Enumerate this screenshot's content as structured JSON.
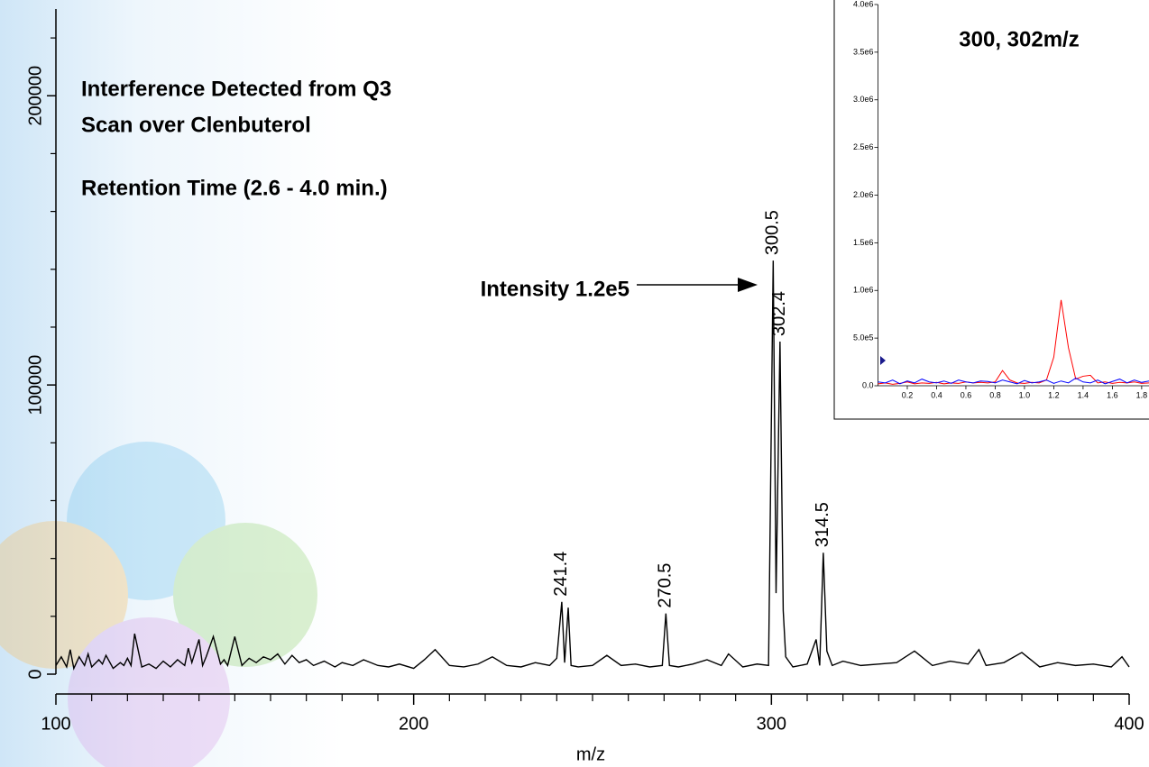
{
  "chart_data": [
    {
      "type": "line",
      "texts": [
        "Interference Detected from Q3",
        "Scan over Clenbuterol",
        "Retention Time (2.6 - 4.0 min.)"
      ],
      "arrow_label": "Intensity 1.2e5",
      "xlabel": "m/z",
      "xlim": [
        100,
        400
      ],
      "xticks": [
        100,
        200,
        300,
        400
      ],
      "xticks_minor": [
        110,
        120,
        130,
        140,
        150,
        160,
        170,
        180,
        190,
        210,
        220,
        230,
        240,
        250,
        260,
        270,
        280,
        290,
        310,
        320,
        330,
        340,
        350,
        360,
        370,
        380,
        390
      ],
      "ylim": [
        0,
        230000
      ],
      "yticks": [
        0,
        100000,
        200000
      ],
      "yticks_minor": [
        20000,
        40000,
        60000,
        80000,
        120000,
        140000,
        160000,
        180000,
        220000
      ],
      "x": [
        100,
        101.5,
        103,
        104,
        105,
        106.5,
        108,
        109,
        110,
        112,
        113,
        114,
        116,
        118,
        119,
        120,
        121,
        122,
        124,
        126,
        128,
        130,
        132,
        134,
        136,
        137,
        138,
        140,
        141,
        142,
        144,
        146,
        147,
        148,
        150,
        152,
        154,
        156,
        158,
        160,
        162,
        164,
        166,
        168,
        170,
        172,
        175,
        178,
        180,
        183,
        186,
        190,
        193,
        196,
        200,
        203,
        206,
        210,
        214,
        218,
        222,
        226,
        230,
        234,
        238,
        240,
        241.4,
        242.2,
        243.2,
        244,
        246,
        250,
        254,
        258,
        262,
        266,
        269.5,
        270.5,
        271.5,
        274,
        278,
        282,
        286,
        288,
        292,
        296,
        299.2,
        300.5,
        301.3,
        302.4,
        303.3,
        304,
        306,
        310,
        312.5,
        313.5,
        314.5,
        315.5,
        317,
        320,
        325,
        330,
        335,
        340,
        345,
        350,
        355,
        358,
        360,
        365,
        370,
        375,
        380,
        385,
        390,
        395,
        398,
        400
      ],
      "series": [
        {
          "color": "#000000",
          "values": [
            3000,
            6000,
            2500,
            8500,
            2000,
            6000,
            3000,
            7000,
            2500,
            5000,
            3500,
            6500,
            2000,
            4000,
            3000,
            5500,
            3000,
            14000,
            2500,
            3500,
            2000,
            4500,
            2500,
            5000,
            3000,
            9000,
            4000,
            12000,
            3000,
            6000,
            13000,
            3500,
            5000,
            3000,
            13000,
            3000,
            5500,
            4000,
            6000,
            5000,
            7000,
            3500,
            6500,
            4000,
            5000,
            3000,
            4500,
            2500,
            4000,
            3000,
            5000,
            3000,
            2500,
            3500,
            2000,
            5000,
            8500,
            3000,
            2500,
            3500,
            6000,
            3000,
            2500,
            4000,
            3000,
            5500,
            25000,
            4000,
            23000,
            3000,
            2500,
            3000,
            6500,
            3000,
            3500,
            2500,
            3000,
            21000,
            3000,
            2500,
            3500,
            5000,
            3000,
            7000,
            2500,
            3500,
            3000,
            143000,
            28000,
            115000,
            22000,
            6000,
            2500,
            3500,
            12000,
            3000,
            42000,
            8000,
            3000,
            4500,
            3000,
            3500,
            4000,
            8000,
            3000,
            4500,
            3500,
            8500,
            3000,
            4000,
            7500,
            2500,
            4000,
            3000,
            3500,
            2500,
            6000,
            2500
          ]
        }
      ],
      "peak_labels": [
        241.4,
        270.5,
        300.5,
        302.4,
        314.5
      ]
    },
    {
      "type": "line",
      "title": "300, 302m/z",
      "xlim": [
        0,
        1.85
      ],
      "xticks": [
        0.2,
        0.4,
        0.6,
        0.8,
        {
          "value": 1,
          "label": "1.0"
        },
        1.2,
        1.4,
        1.6,
        1.8
      ],
      "ylim": [
        0,
        4000000
      ],
      "yticks": [
        {
          "value": 0,
          "label": "0.0"
        },
        {
          "value": 500000,
          "label": "5.0e5"
        },
        {
          "value": 1000000,
          "label": "1.0e6"
        },
        {
          "value": 1500000,
          "label": "1.5e6"
        },
        {
          "value": 2000000,
          "label": "2.0e6"
        },
        {
          "value": 2500000,
          "label": "2.5e6"
        },
        {
          "value": 3000000,
          "label": "3.0e6"
        },
        {
          "value": 3500000,
          "label": "3.5e6"
        },
        {
          "value": 4000000,
          "label": "4.0e6"
        }
      ],
      "x": [
        0,
        0.05,
        0.1,
        0.15,
        0.2,
        0.25,
        0.3,
        0.35,
        0.4,
        0.45,
        0.5,
        0.55,
        0.6,
        0.65,
        0.7,
        0.75,
        0.8,
        0.85,
        0.9,
        0.95,
        1.0,
        1.05,
        1.1,
        1.15,
        1.2,
        1.25,
        1.3,
        1.35,
        1.4,
        1.45,
        1.5,
        1.55,
        1.6,
        1.65,
        1.7,
        1.75,
        1.8,
        1.85
      ],
      "series": [
        {
          "color": "#ff0000",
          "values": [
            20000,
            30000,
            15000,
            25000,
            40000,
            20000,
            30000,
            25000,
            35000,
            20000,
            30000,
            25000,
            40000,
            30000,
            35000,
            30000,
            40000,
            160000,
            60000,
            30000,
            25000,
            35000,
            30000,
            60000,
            300000,
            900000,
            400000,
            70000,
            100000,
            110000,
            30000,
            40000,
            25000,
            35000,
            30000,
            40000,
            25000,
            30000
          ]
        },
        {
          "color": "#0000ff",
          "values": [
            40000,
            30000,
            60000,
            20000,
            50000,
            30000,
            70000,
            40000,
            30000,
            50000,
            25000,
            60000,
            40000,
            30000,
            50000,
            45000,
            30000,
            60000,
            40000,
            20000,
            55000,
            30000,
            40000,
            60000,
            25000,
            50000,
            30000,
            80000,
            40000,
            30000,
            60000,
            20000,
            45000,
            70000,
            30000,
            60000,
            35000,
            50000
          ]
        }
      ]
    }
  ]
}
